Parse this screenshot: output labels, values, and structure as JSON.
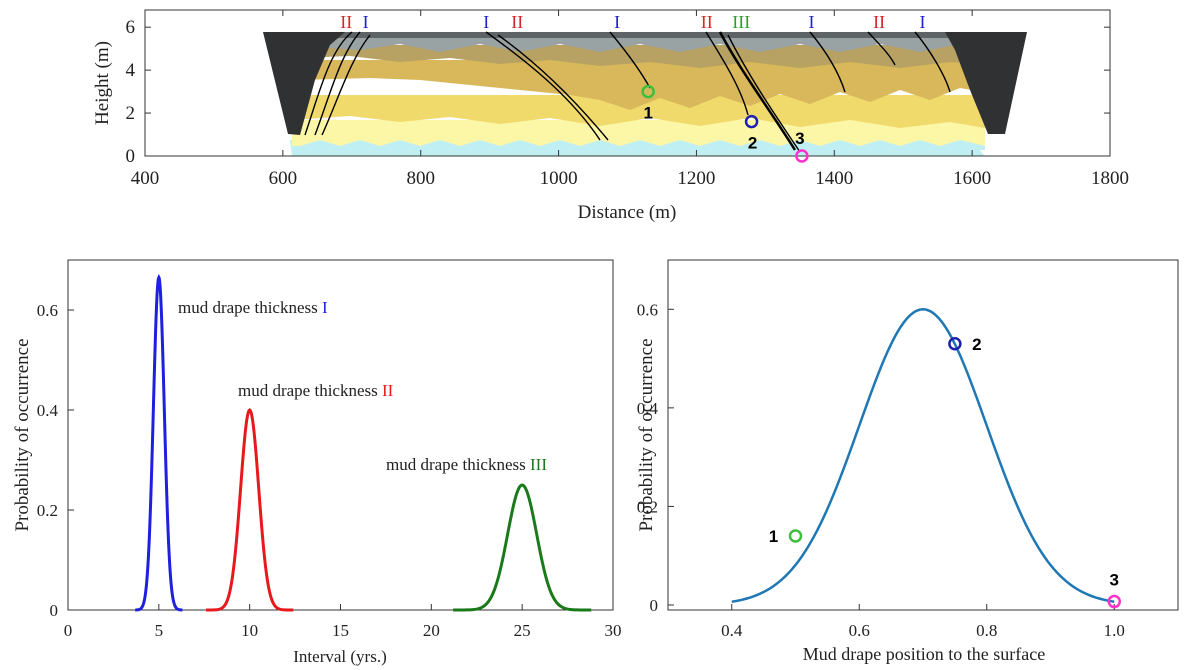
{
  "chart_data": [
    {
      "type": "area",
      "xlabel": "Distance (m)",
      "ylabel": "Height (m)",
      "xlim": [
        400,
        1800
      ],
      "ylim": [
        0,
        6.8
      ],
      "xticks": [
        400,
        600,
        800,
        1000,
        1200,
        1400,
        1600,
        1800
      ],
      "yticks": [
        0,
        2,
        4,
        6
      ],
      "roman_labels": [
        {
          "text": "II",
          "x": 692,
          "color": "#d62728"
        },
        {
          "text": "I",
          "x": 720,
          "color": "#1f1fd6"
        },
        {
          "text": "I",
          "x": 895,
          "color": "#1f1fd6"
        },
        {
          "text": "II",
          "x": 940,
          "color": "#d62728"
        },
        {
          "text": "I",
          "x": 1085,
          "color": "#1f1fd6"
        },
        {
          "text": "II",
          "x": 1215,
          "color": "#d62728"
        },
        {
          "text": "III",
          "x": 1265,
          "color": "#2ca02c"
        },
        {
          "text": "I",
          "x": 1367,
          "color": "#1f1fd6"
        },
        {
          "text": "II",
          "x": 1465,
          "color": "#d62728"
        },
        {
          "text": "I",
          "x": 1528,
          "color": "#1f1fd6"
        }
      ],
      "markers": [
        {
          "label": "1",
          "x": 1130,
          "y": 3.0,
          "color": "#3cbf3c"
        },
        {
          "label": "2",
          "x": 1280,
          "y": 1.6,
          "color": "#1f1fb0"
        },
        {
          "label": "3",
          "x": 1353,
          "y": 0.0,
          "color": "#ff33cc"
        }
      ]
    },
    {
      "type": "line",
      "xlabel": "Interval (yrs.)",
      "ylabel": "Probability of occurrence",
      "xlim": [
        0,
        30
      ],
      "ylim": [
        0,
        0.7
      ],
      "xticks": [
        0,
        5,
        10,
        15,
        20,
        25,
        30
      ],
      "yticks": [
        0,
        0.2,
        0.4,
        0.6
      ],
      "series": [
        {
          "mean": 5,
          "peak": 0.665,
          "sd": 0.3,
          "range": [
            3.7,
            6.3
          ],
          "color": "#1f1fe0"
        },
        {
          "mean": 10,
          "peak": 0.4,
          "sd": 0.5,
          "range": [
            7.6,
            12.4
          ],
          "color": "#e8191c"
        },
        {
          "mean": 25,
          "peak": 0.25,
          "sd": 0.8,
          "range": [
            21.2,
            28.8
          ],
          "color": "#1a7a1a"
        }
      ],
      "annotations": [
        {
          "prefix": "mud drape thickness ",
          "numeral": "I",
          "color": "#1f1fe0"
        },
        {
          "prefix": "mud drape thickness ",
          "numeral": "II",
          "color": "#e8191c"
        },
        {
          "prefix": "mud drape thickness ",
          "numeral": "III",
          "color": "#1a7a1a"
        }
      ]
    },
    {
      "type": "line",
      "xlabel": "Mud drape position to the surface",
      "ylabel": "Probability of occurrence",
      "xlim": [
        0.3,
        1.1
      ],
      "ylim": [
        0,
        0.7
      ],
      "xticks": [
        "0.4",
        "0.6",
        "0.8",
        "1.0"
      ],
      "yticks": [
        "0",
        "0.2",
        "0.4",
        "0.6"
      ],
      "series": [
        {
          "mean": 0.7,
          "peak": 0.6,
          "sd": 0.1,
          "range": [
            0.4,
            1.0
          ],
          "color": "#1f77b4"
        }
      ],
      "markers": [
        {
          "label": "1",
          "x": 0.5,
          "y": 0.14,
          "color": "#3cbf3c"
        },
        {
          "label": "2",
          "x": 0.75,
          "y": 0.53,
          "color": "#1f1fb0"
        },
        {
          "label": "3",
          "x": 1.0,
          "y": 0.007,
          "color": "#ff33cc"
        }
      ]
    }
  ]
}
